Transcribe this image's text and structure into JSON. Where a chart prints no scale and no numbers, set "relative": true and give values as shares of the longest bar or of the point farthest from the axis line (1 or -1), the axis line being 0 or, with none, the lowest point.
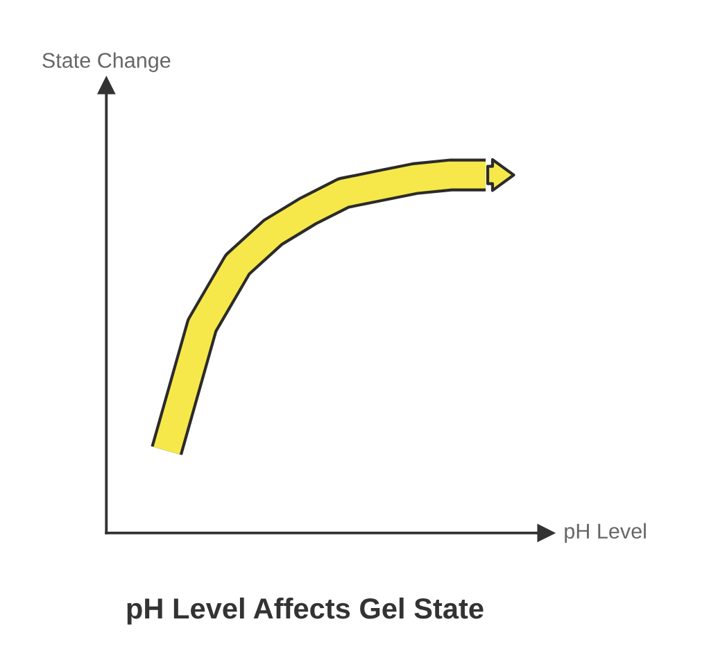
{
  "chart_data": {
    "type": "line",
    "title": "pH Level Affects Gel State",
    "xlabel": "pH Level",
    "ylabel": "State Change",
    "relative": true,
    "categories": [
      null,
      null,
      null,
      null,
      null,
      null,
      null,
      null,
      null,
      null,
      null,
      null
    ],
    "values": [
      null,
      0.23,
      0.58,
      0.75,
      0.84,
      0.9,
      0.95,
      0.97,
      0.99,
      1.0,
      1.0,
      null
    ],
    "color": "#f6e84a"
  }
}
